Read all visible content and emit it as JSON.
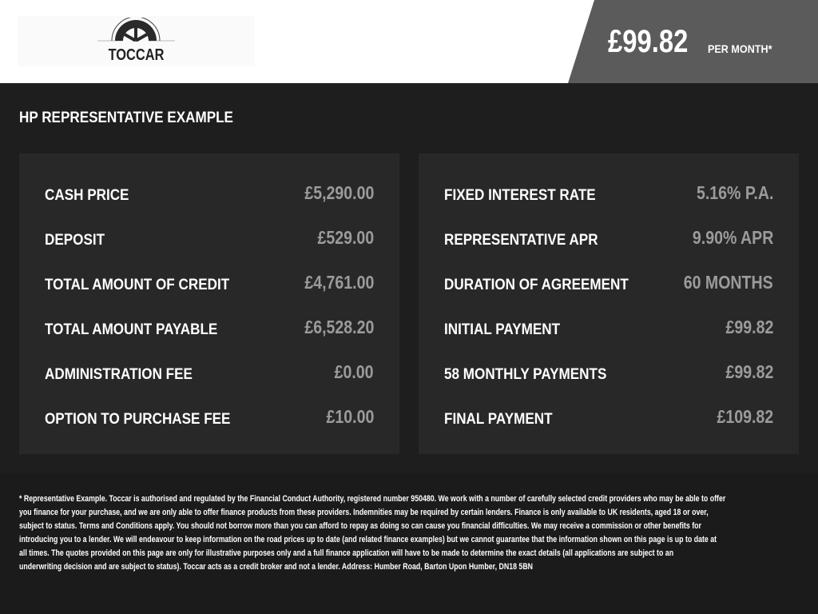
{
  "brand": {
    "name": "TOCCAR"
  },
  "header": {
    "price": "£99.82",
    "per_month": "PER MONTH*"
  },
  "title": "HP REPRESENTATIVE EXAMPLE",
  "left": [
    {
      "label": "CASH PRICE",
      "value": "£5,290.00"
    },
    {
      "label": "DEPOSIT",
      "value": "£529.00"
    },
    {
      "label": "TOTAL AMOUNT OF CREDIT",
      "value": "£4,761.00"
    },
    {
      "label": "TOTAL AMOUNT PAYABLE",
      "value": "£6,528.20"
    },
    {
      "label": "ADMINISTRATION FEE",
      "value": "£0.00"
    },
    {
      "label": "OPTION TO PURCHASE FEE",
      "value": "£10.00"
    }
  ],
  "right": [
    {
      "label": "FIXED INTEREST RATE",
      "value": "5.16% P.A."
    },
    {
      "label": "REPRESENTATIVE APR",
      "value": "9.90% APR"
    },
    {
      "label": "DURATION OF AGREEMENT",
      "value": "60 MONTHS"
    },
    {
      "label": "INITIAL PAYMENT",
      "value": "£99.82"
    },
    {
      "label": "58 MONTHLY PAYMENTS",
      "value": "£99.82"
    },
    {
      "label": "FINAL PAYMENT",
      "value": "£109.82"
    }
  ],
  "footer": {
    "lines": [
      "* Representative Example. Toccar is authorised and regulated by the Financial Conduct Authority, registered number 950480. We work with a number of carefully selected credit providers who may be able to offer",
      "you finance for your purchase, and we are only able to offer finance products from these providers. Indemnities may be required by certain lenders. Finance is only available to UK residents, aged 18 or over,",
      "subject to status. Terms and Conditions apply. You should not borrow more than you can afford to repay as doing so can cause you financial difficulties. We may receive a commission or other benefits for",
      "introducing you to a lender. We will endeavour to keep information on the road prices up to date (and related finance examples) but we cannot guarantee that the information shown on this page is up to date at",
      "all times. The quotes provided on this page are only for illustrative purposes only and a full finance application will have to be made to determine the exact details (all applications are subject to an",
      "underwriting decision and are subject to status). Toccar acts as a credit broker and not a lender. Address: Humber Road, Barton Upon Humber, DN18 5BN"
    ]
  }
}
